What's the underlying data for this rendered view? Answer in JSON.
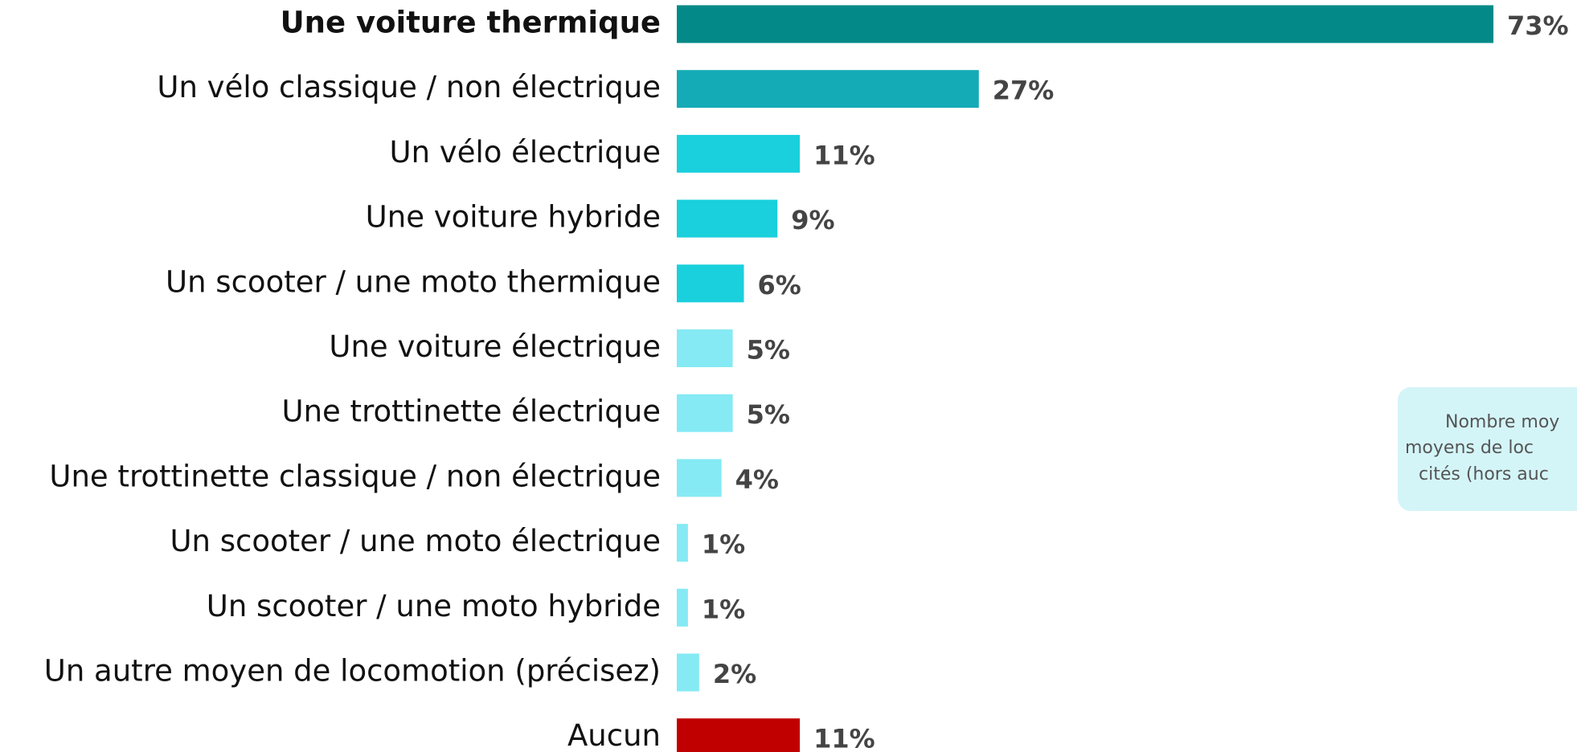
{
  "chart_data": {
    "type": "bar",
    "categories": [
      "Une voiture thermique",
      "Un vélo classique / non électrique",
      "Un vélo électrique",
      "Une voiture hybride",
      "Un scooter / une moto thermique",
      "Une voiture électrique",
      "Une trottinette électrique",
      "Une trottinette classique / non électrique",
      "Un scooter / une moto électrique",
      "Un scooter / une moto hybride",
      "Un autre moyen de locomotion (précisez)",
      "Aucun"
    ],
    "values": [
      73,
      27,
      11,
      9,
      6,
      5,
      5,
      4,
      1,
      1,
      2,
      11
    ],
    "value_labels": [
      "73%",
      "27%",
      "11%",
      "9%",
      "6%",
      "5%",
      "5%",
      "4%",
      "1%",
      "1%",
      "2%",
      "11%"
    ],
    "colors": [
      "#038a88",
      "#14abb6",
      "#1ad0dc",
      "#1ad0dc",
      "#1ad0dc",
      "#85eaf4",
      "#85eaf4",
      "#85eaf4",
      "#85eaf4",
      "#85eaf4",
      "#85eaf4",
      "#c00000"
    ],
    "annotation": [
      "Nombre moy",
      "moyens de loc",
      "cités (hors auc"
    ]
  }
}
